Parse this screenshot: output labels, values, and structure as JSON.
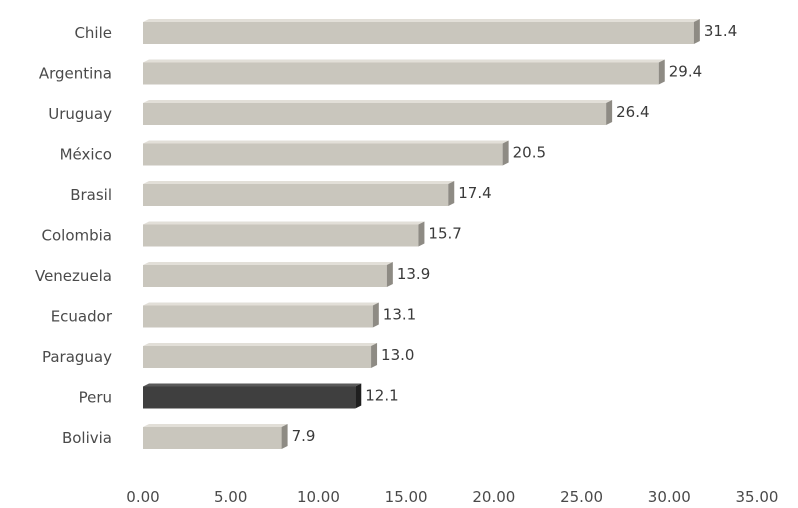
{
  "chart_data": {
    "type": "bar",
    "orientation": "horizontal",
    "categories": [
      "Chile",
      "Argentina",
      "Uruguay",
      "México",
      "Brasil",
      "Colombia",
      "Venezuela",
      "Ecuador",
      "Paraguay",
      "Peru",
      "Bolivia"
    ],
    "values": [
      31.4,
      29.4,
      26.4,
      20.5,
      17.4,
      15.7,
      13.9,
      13.1,
      13.0,
      12.1,
      7.9
    ],
    "value_labels": [
      "31.4",
      "29.4",
      "26.4",
      "20.5",
      "17.4",
      "15.7",
      "13.9",
      "13.1",
      "13.0",
      "12.1",
      "7.9"
    ],
    "highlight_category": "Peru",
    "xlim": [
      0,
      35
    ],
    "xticks": [
      0,
      5,
      10,
      15,
      20,
      25,
      30,
      35
    ],
    "xtick_labels": [
      "0.00",
      "5.00",
      "10.00",
      "15.00",
      "20.00",
      "25.00",
      "30.00",
      "35.00"
    ],
    "grid": false,
    "legend": "none",
    "colors": {
      "bar_fill": "#c9c6bd",
      "bar_top": "#e2dfd8",
      "bar_side": "#8e8b84",
      "highlight_fill": "#3f3f3f",
      "highlight_top": "#5a5a5a",
      "highlight_side": "#1f1f1f"
    }
  }
}
